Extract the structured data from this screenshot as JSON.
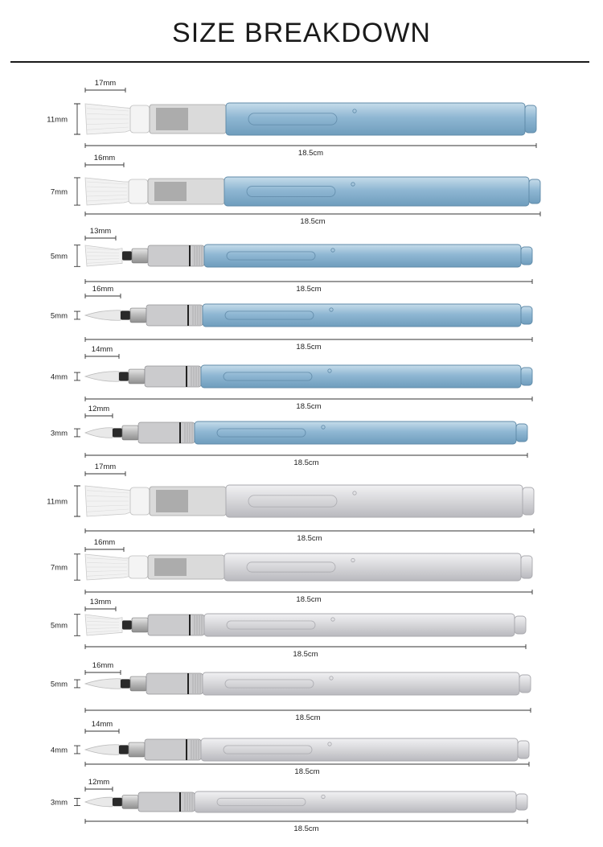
{
  "title": "SIZE BREAKDOWN",
  "brushes": [
    {
      "width": "11mm",
      "tip": "17mm",
      "length": "18.5cm",
      "barrel": "blue",
      "tip_type": "flat"
    },
    {
      "width": "7mm",
      "tip": "16mm",
      "length": "18.5cm",
      "barrel": "blue",
      "tip_type": "flat"
    },
    {
      "width": "5mm",
      "tip": "13mm",
      "length": "18.5cm",
      "barrel": "blue",
      "tip_type": "flat-small"
    },
    {
      "width": "5mm",
      "tip": "16mm",
      "length": "18.5cm",
      "barrel": "blue",
      "tip_type": "round"
    },
    {
      "width": "4mm",
      "tip": "14mm",
      "length": "18.5cm",
      "barrel": "blue",
      "tip_type": "round"
    },
    {
      "width": "3mm",
      "tip": "12mm",
      "length": "18.5cm",
      "barrel": "blue",
      "tip_type": "round"
    },
    {
      "width": "11mm",
      "tip": "17mm",
      "length": "18.5cm",
      "barrel": "clear",
      "tip_type": "flat"
    },
    {
      "width": "7mm",
      "tip": "16mm",
      "length": "18.5cm",
      "barrel": "clear",
      "tip_type": "flat"
    },
    {
      "width": "5mm",
      "tip": "13mm",
      "length": "18.5cm",
      "barrel": "clear",
      "tip_type": "flat-small"
    },
    {
      "width": "5mm",
      "tip": "16mm",
      "length": "18.5cm",
      "barrel": "clear",
      "tip_type": "round"
    },
    {
      "width": "4mm",
      "tip": "14mm",
      "length": "18.5cm",
      "barrel": "clear",
      "tip_type": "round"
    },
    {
      "width": "3mm",
      "tip": "12mm",
      "length": "18.5cm",
      "barrel": "clear",
      "tip_type": "round"
    }
  ],
  "colors": {
    "blue_barrel": "#8fb7d3",
    "clear_barrel": "#d9d9dc",
    "bristle": "#f2f2f2",
    "ferrule_dark": "#2a2a2a"
  }
}
